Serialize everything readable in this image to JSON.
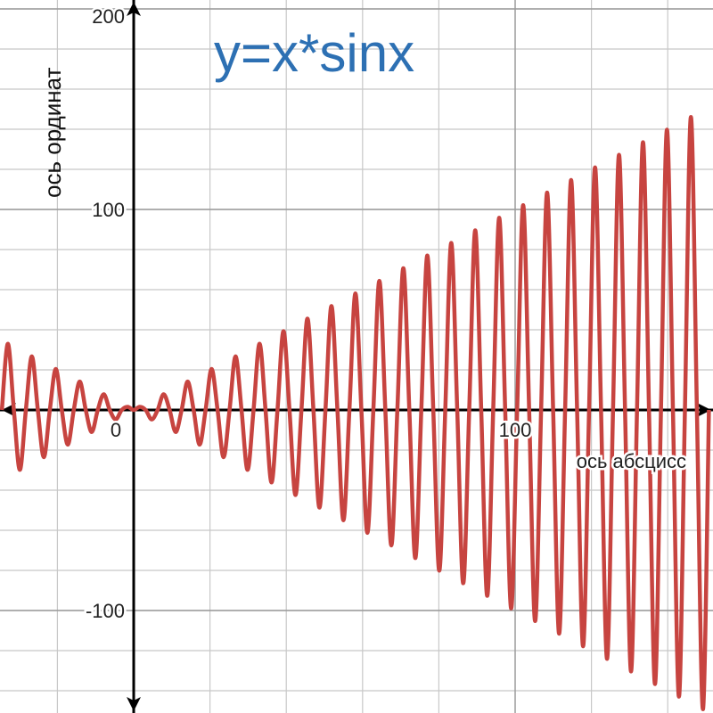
{
  "chart_data": {
    "type": "line",
    "title": "y=x*sinx",
    "x_label": "ось абсцисс",
    "y_label": "ось ординат",
    "xlim": [
      -35.05,
      151.87
    ],
    "ylim": [
      -151.11,
      204.44
    ],
    "xticks": [
      0,
      100
    ],
    "yticks": [
      -100,
      100,
      200
    ],
    "xgrid": [
      -20,
      0,
      20,
      40,
      60,
      80,
      100,
      120,
      140
    ],
    "ygrid": [
      -140,
      -120,
      -100,
      -80,
      -60,
      -40,
      -20,
      0,
      20,
      40,
      60,
      80,
      100,
      120,
      140,
      160,
      180,
      200
    ],
    "grid": true,
    "series": [
      {
        "name": "y=x*sinx",
        "color": "#c74440",
        "x": [
          -34.56,
          -32.99,
          -31.42,
          -29.85,
          -28.27,
          -26.7,
          -25.13,
          -23.56,
          -21.99,
          -20.42,
          -18.85,
          -17.28,
          -15.71,
          -14.14,
          -12.57,
          -11.0,
          -9.42,
          -7.85,
          -6.28,
          -4.71,
          -3.14,
          -1.57,
          0,
          1.57,
          3.14,
          4.71,
          6.28,
          7.85,
          9.42,
          11.0,
          12.57,
          14.14,
          15.71,
          17.28,
          18.85,
          20.42,
          21.99,
          23.56,
          25.13,
          26.7,
          28.27,
          29.85,
          31.42,
          32.99,
          34.56,
          36.13,
          37.7,
          39.27,
          40.84,
          42.41,
          43.98,
          45.55,
          47.12,
          48.69,
          50.27,
          51.84,
          53.41,
          54.98,
          56.55,
          58.12,
          59.69,
          61.26,
          62.83,
          64.4,
          65.97,
          67.54,
          69.12,
          70.69,
          72.26,
          73.83,
          75.4,
          76.97,
          78.54,
          80.11,
          81.68,
          83.25,
          84.82,
          86.39,
          87.96,
          89.54,
          91.11,
          92.68,
          94.25,
          95.82,
          97.39,
          98.96,
          100.53,
          102.1,
          103.67,
          105.24,
          106.81,
          108.38,
          109.96,
          111.53,
          113.1,
          114.67,
          116.24,
          117.81,
          119.38,
          120.95,
          122.52,
          124.09,
          125.66,
          127.23,
          128.81,
          130.38,
          131.95,
          133.52,
          135.09,
          136.66,
          138.23,
          139.8,
          141.37,
          142.94,
          144.51,
          146.08,
          147.65,
          149.23,
          150.8
        ],
        "values": [
          0,
          32.99,
          0,
          -29.85,
          0,
          26.7,
          0,
          -23.56,
          0,
          20.42,
          0,
          -17.28,
          0,
          14.14,
          0,
          -11.0,
          0,
          7.85,
          0,
          -4.71,
          0,
          1.57,
          0,
          1.57,
          0,
          -4.71,
          0,
          7.85,
          0,
          -11.0,
          0,
          14.14,
          0,
          -17.28,
          0,
          20.42,
          0,
          -23.56,
          0,
          26.7,
          0,
          -29.85,
          0,
          32.99,
          0,
          -36.13,
          0,
          39.27,
          0,
          -42.41,
          0,
          45.55,
          0,
          -48.69,
          0,
          51.84,
          0,
          -54.98,
          0,
          58.12,
          0,
          -61.26,
          0,
          64.4,
          0,
          -67.54,
          0,
          70.69,
          0,
          -73.83,
          0,
          76.97,
          0,
          -80.11,
          0,
          83.25,
          0,
          -86.39,
          0,
          89.54,
          0,
          -92.68,
          0,
          95.82,
          0,
          -98.96,
          0,
          102.1,
          0,
          -105.24,
          0,
          108.38,
          0,
          -111.53,
          0,
          114.67,
          0,
          -117.81,
          0,
          120.95,
          0,
          -124.09,
          0,
          127.23,
          0,
          -130.38,
          0,
          133.52,
          0,
          -136.66,
          0,
          139.8,
          0,
          -142.94,
          0,
          146.08,
          0,
          -149.23,
          0
        ]
      }
    ]
  }
}
